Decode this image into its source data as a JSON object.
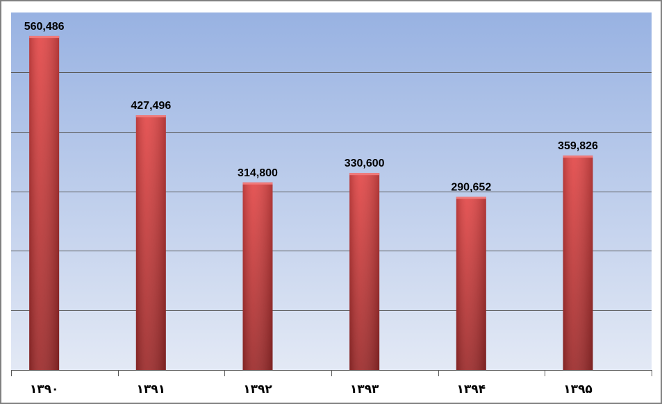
{
  "chart_data": {
    "type": "bar",
    "categories": [
      "۱۳۹۰",
      "۱۳۹۱",
      "۱۳۹۲",
      "۱۳۹۳",
      "۱۳۹۴",
      "۱۳۹۵"
    ],
    "values": [
      560486,
      427496,
      314800,
      330600,
      290652,
      359826
    ],
    "value_labels": [
      "560,486",
      "427,496",
      "314,800",
      "330,600",
      "290,652",
      "359,826"
    ],
    "title": "",
    "xlabel": "",
    "ylabel": "",
    "ylim": [
      0,
      600000
    ],
    "gridlines": [
      100000,
      200000,
      300000,
      400000,
      500000
    ],
    "grid": true,
    "legend": "none",
    "colors": {
      "bar_top": "#e34848",
      "bar_bottom": "#9b2a2a",
      "plot_bg_top": "#98b2e2",
      "plot_bg_bottom": "#e3e9f5",
      "gridline": "#5a5a5a"
    }
  }
}
